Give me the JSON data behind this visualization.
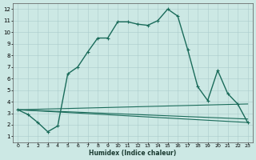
{
  "title": "",
  "xlabel": "Humidex (Indice chaleur)",
  "bg_color": "#cce8e4",
  "grid_color": "#aacccc",
  "line_color": "#1a6b5a",
  "xlim": [
    -0.5,
    23.5
  ],
  "ylim": [
    0.5,
    12.5
  ],
  "xticks": [
    0,
    1,
    2,
    3,
    4,
    5,
    6,
    7,
    8,
    9,
    10,
    11,
    12,
    13,
    14,
    15,
    16,
    17,
    18,
    19,
    20,
    21,
    22,
    23
  ],
  "yticks": [
    1,
    2,
    3,
    4,
    5,
    6,
    7,
    8,
    9,
    10,
    11,
    12
  ],
  "lines": [
    {
      "x": [
        0,
        1,
        2,
        3,
        4,
        5,
        6,
        7,
        8,
        9,
        10,
        11,
        12,
        13,
        14,
        15,
        16,
        17,
        18,
        19,
        20,
        21,
        22,
        23
      ],
      "y": [
        3.3,
        2.9,
        2.2,
        1.4,
        1.9,
        6.4,
        7.0,
        8.3,
        9.5,
        9.5,
        10.9,
        10.9,
        10.7,
        10.6,
        11.0,
        12.0,
        11.4,
        8.5,
        5.3,
        4.1,
        6.7,
        4.7,
        3.8,
        2.2
      ],
      "marker": "+",
      "lw": 1.0
    },
    {
      "x": [
        0,
        23
      ],
      "y": [
        3.3,
        3.8
      ],
      "marker": null,
      "lw": 0.8
    },
    {
      "x": [
        0,
        23
      ],
      "y": [
        3.3,
        2.5
      ],
      "marker": null,
      "lw": 0.8
    },
    {
      "x": [
        0,
        23
      ],
      "y": [
        3.3,
        2.2
      ],
      "marker": null,
      "lw": 0.8
    }
  ]
}
